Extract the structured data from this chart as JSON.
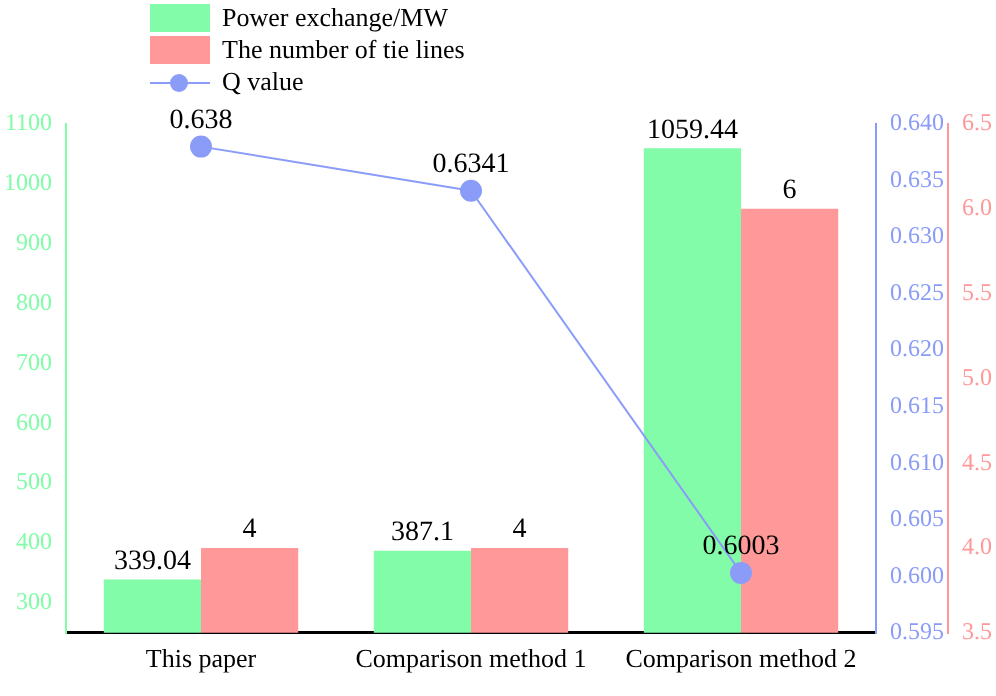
{
  "chart_data": {
    "type": "bar",
    "categories": [
      "This paper",
      "Comparison method 1",
      "Comparison method 2"
    ],
    "series": [
      {
        "name": "Power exchange/MW",
        "color": "#82fca8",
        "values": [
          339.04,
          387.1,
          1059.44
        ]
      },
      {
        "name": "The number of tie lines",
        "axis": "y3",
        "color": "#ff9898",
        "values": [
          4,
          4,
          6
        ]
      },
      {
        "name": "Q value",
        "type": "line",
        "axis": "y2",
        "color": "#8a9cf8",
        "values": [
          0.638,
          0.6341,
          0.6003
        ]
      }
    ],
    "ylim": [
      250,
      1100
    ],
    "yticks": [
      300,
      400,
      500,
      600,
      700,
      800,
      900,
      1000,
      1100
    ],
    "y2lim": [
      0.595,
      0.64
    ],
    "y2ticks": [
      0.595,
      {
        "value": 0.6,
        "label": "0.600"
      },
      0.605,
      {
        "value": 0.61,
        "label": "0.610"
      },
      0.615,
      {
        "value": 0.62,
        "label": "0.620"
      },
      0.625,
      {
        "value": 0.63,
        "label": "0.630"
      },
      0.635,
      {
        "value": 0.64,
        "label": "0.640"
      }
    ],
    "y3lim": [
      3.5,
      6.5
    ],
    "y3ticks": [
      3.5,
      {
        "value": 4,
        "label": "4.0"
      },
      4.5,
      {
        "value": 5,
        "label": "5.0"
      },
      5.5,
      {
        "value": 6,
        "label": "6.0"
      },
      6.5
    ],
    "legend": "top left",
    "marker": "circle",
    "data_labels": true
  }
}
